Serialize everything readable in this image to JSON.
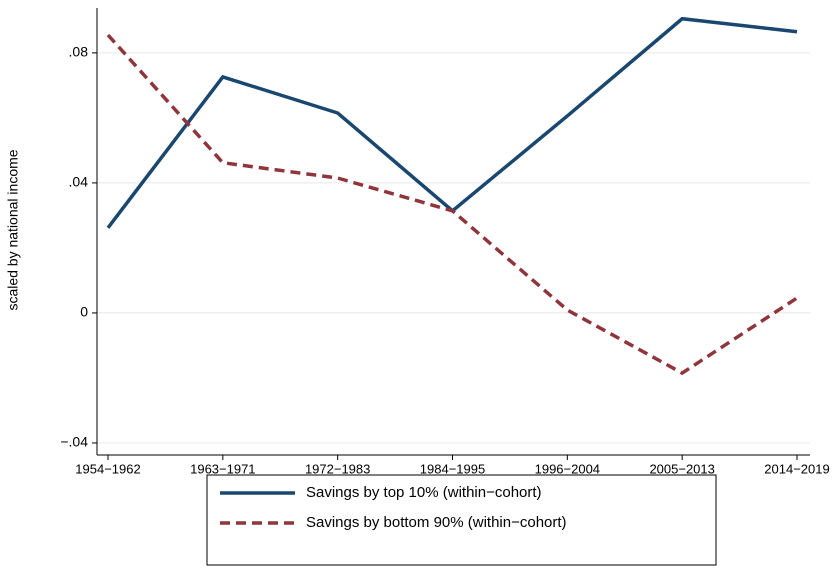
{
  "chart_data": {
    "type": "line",
    "y_label": "scaled by national income",
    "categories": [
      "1954−1962",
      "1963−1971",
      "1972−1983",
      "1984−1995",
      "1996−2004",
      "2005−2013",
      "2014−2019"
    ],
    "series": [
      {
        "name": "Savings by top 10% (within−cohort)",
        "color": "#1a476f",
        "line_style": "solid",
        "values": [
          0.0262,
          0.0726,
          0.0615,
          0.0314,
          0.0606,
          0.0905,
          0.0865
        ]
      },
      {
        "name": "Savings by bottom 90% (within−cohort)",
        "color": "#90353b",
        "line_style": "dashed",
        "values": [
          0.0855,
          0.0462,
          0.0415,
          0.0314,
          0.0009,
          -0.0185,
          0.0046
        ]
      }
    ],
    "ylim": [
      -0.0437,
      0.0938
    ],
    "yticks": [
      {
        "value": 0.08,
        "label": ".08"
      },
      {
        "value": 0.04,
        "label": ".04"
      },
      0,
      {
        "value": -0.04,
        "label": "−.04"
      }
    ],
    "grid": true,
    "legend_position": "bottom"
  }
}
